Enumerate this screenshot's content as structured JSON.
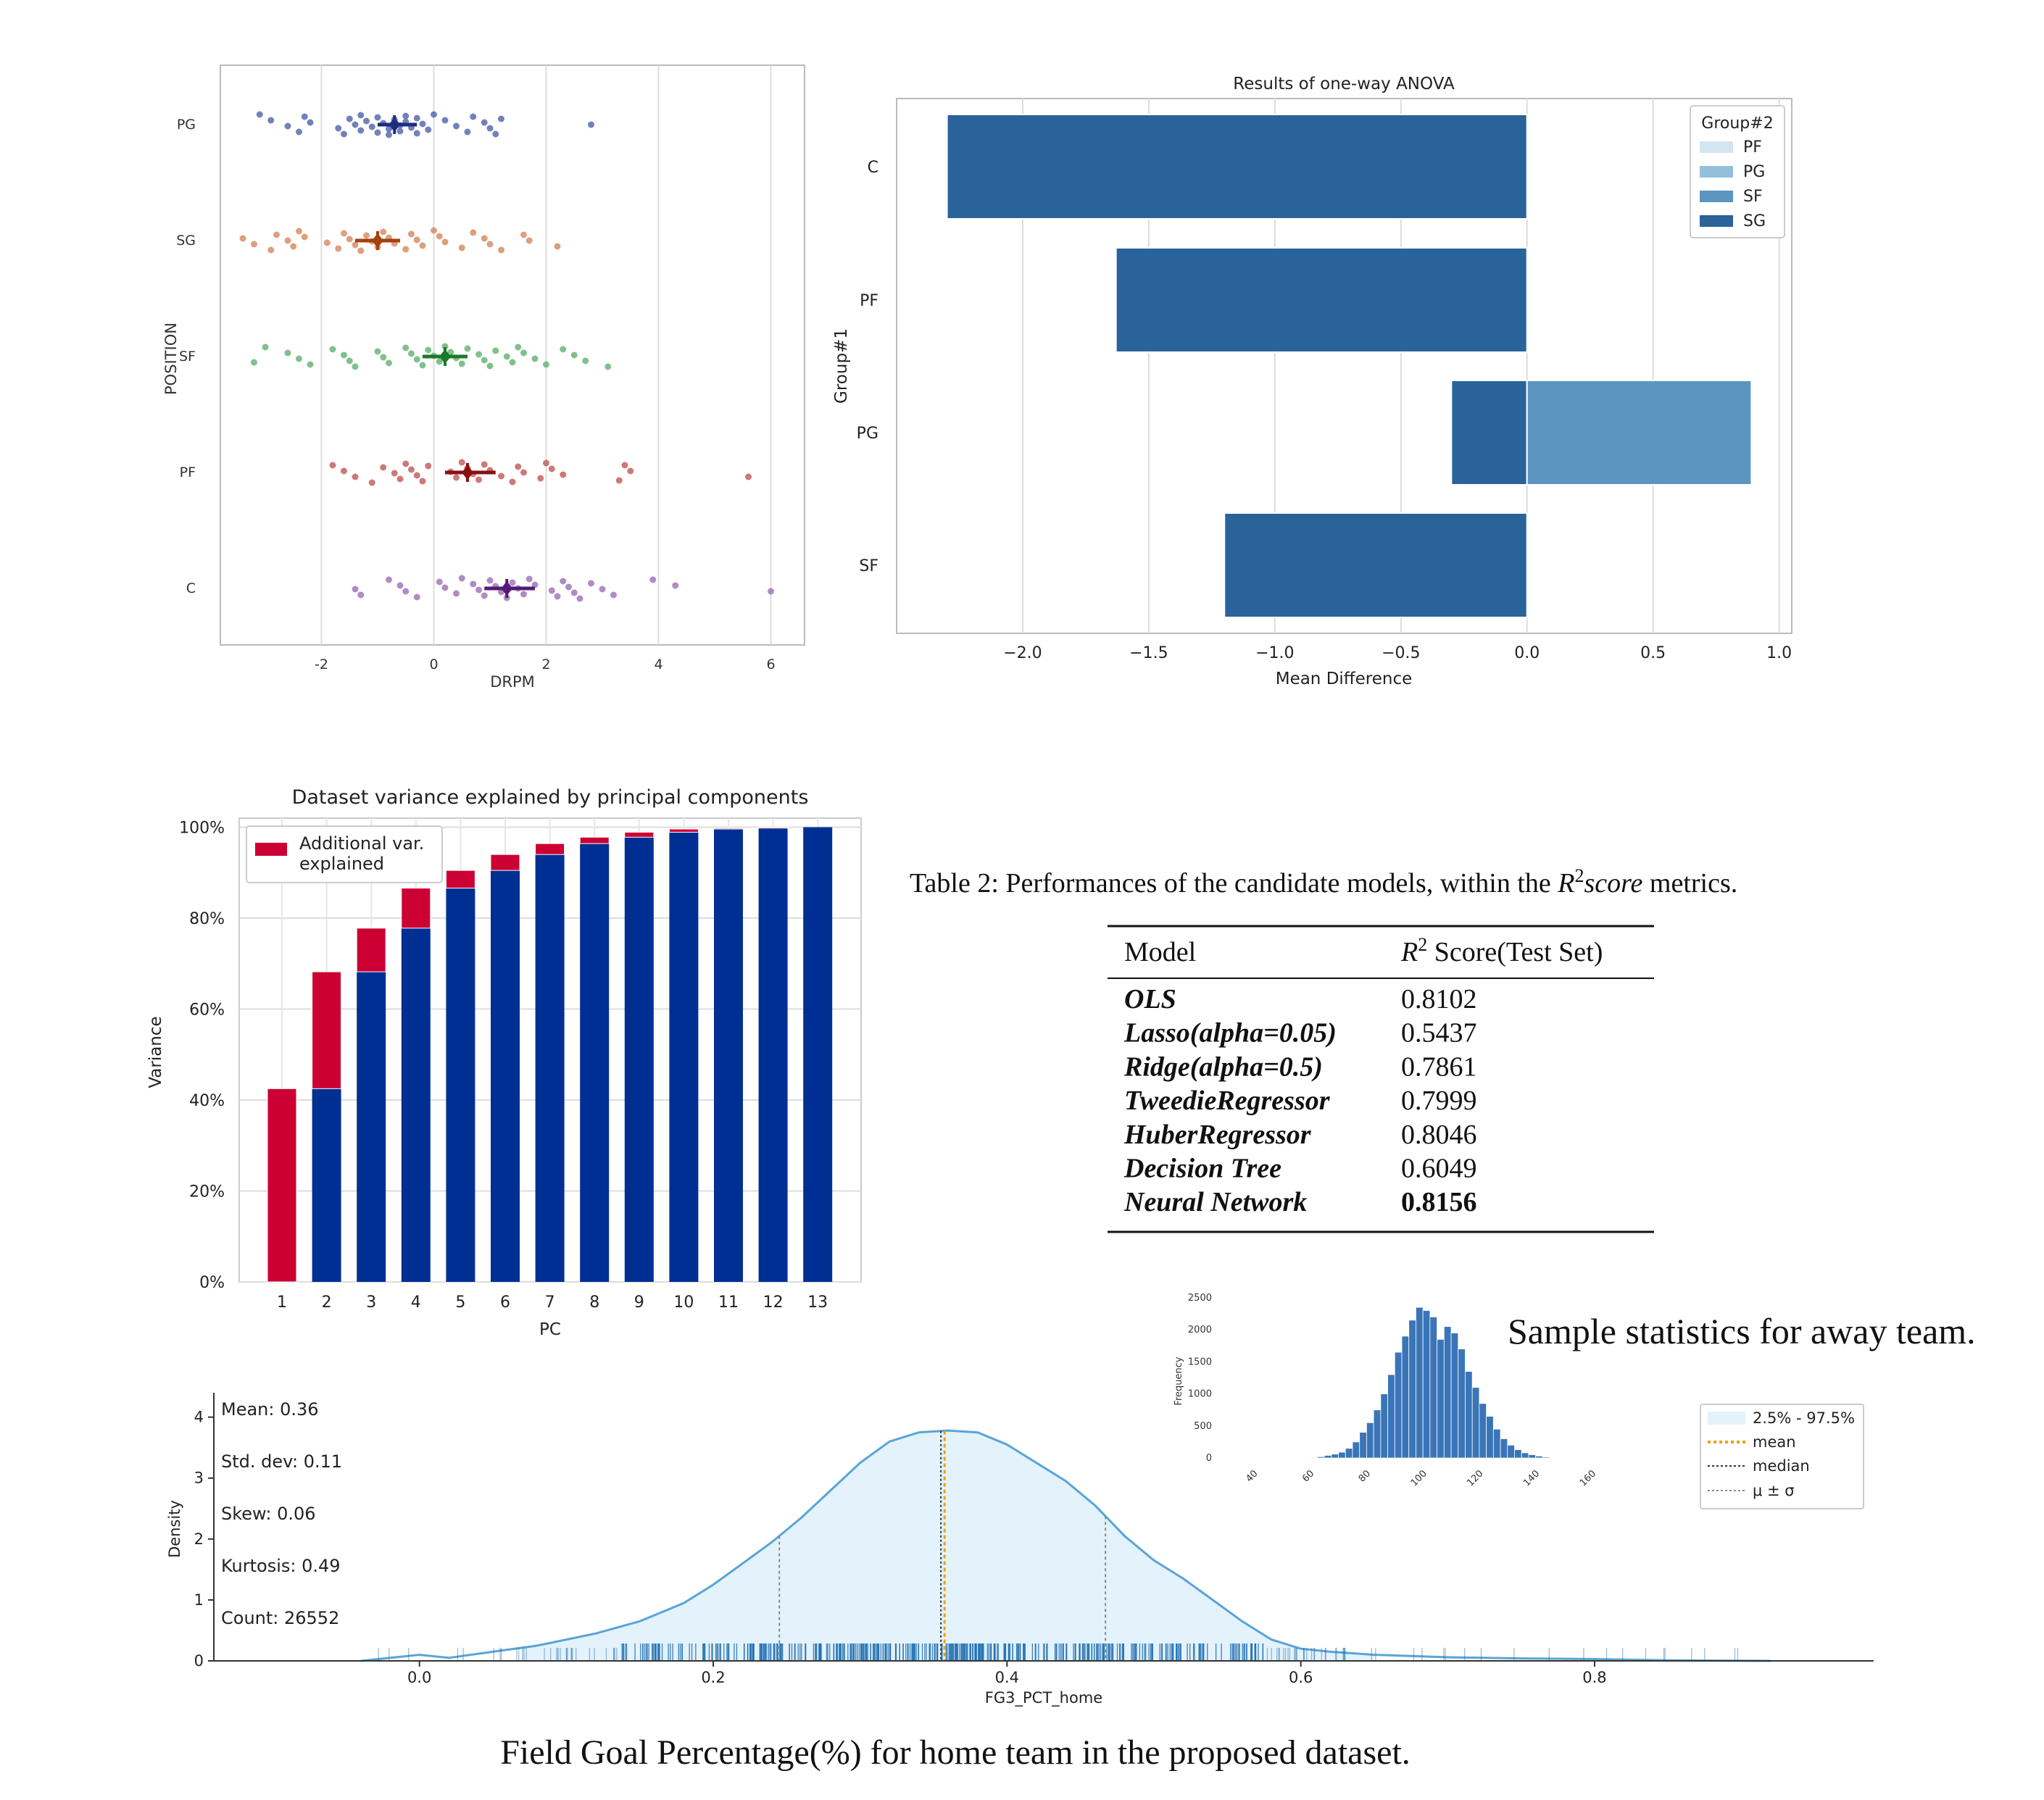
{
  "colors": {
    "pg": "#4c5ea8",
    "pg_dark": "#1c2d80",
    "sg": "#d4845a",
    "sg_dark": "#a6400c",
    "sf": "#5fae6a",
    "sf_dark": "#1b7a2a",
    "pf": "#c05252",
    "pf_dark": "#8a1010",
    "c": "#9a6bb5",
    "c_dark": "#541a78",
    "anova_sg": "#2a6399",
    "anova_sf": "#5b95c0",
    "anova_pg": "#93bfdb",
    "anova_pf": "#d4e5f2",
    "pca_cum": "#002f93",
    "pca_add": "#cc0033",
    "kde_line": "#5aa4d6",
    "kde_fill": "#e3f2fb",
    "rug": "#1f6eb0",
    "mean": "#f0a000",
    "median": "#333333",
    "hist": "#3a75b8"
  },
  "chart_data": [
    {
      "id": "strip",
      "type": "scatter",
      "title": "",
      "xlabel": "DRPM",
      "ylabel": "POSITION",
      "xlim": [
        -3.8,
        6.6
      ],
      "xticks": [
        -2,
        0,
        2,
        4,
        6
      ],
      "xtick_labels": [
        "-2",
        "0",
        "2",
        "4",
        "6"
      ],
      "grid": "x",
      "categories": [
        "PG",
        "SG",
        "SF",
        "PF",
        "C"
      ],
      "series": [
        {
          "category": "PG",
          "color_key": "pg",
          "mean": -0.7,
          "ci": [
            -1.0,
            -0.3
          ],
          "values": [
            -3.1,
            -2.9,
            -2.6,
            -2.4,
            -2.3,
            -2.2,
            -1.7,
            -1.6,
            -1.5,
            -1.4,
            -1.3,
            -1.3,
            -1.2,
            -1.1,
            -1.0,
            -1.0,
            -0.9,
            -0.8,
            -0.8,
            -0.7,
            -0.6,
            -0.6,
            -0.5,
            -0.5,
            -0.4,
            -0.3,
            -0.3,
            -0.2,
            -0.1,
            0.0,
            0.2,
            0.4,
            0.6,
            0.7,
            0.9,
            1.0,
            1.1,
            1.2,
            2.8
          ]
        },
        {
          "category": "SG",
          "color_key": "sg",
          "mean": -1.0,
          "ci": [
            -1.4,
            -0.6
          ],
          "values": [
            -3.4,
            -3.2,
            -2.9,
            -2.8,
            -2.6,
            -2.5,
            -2.4,
            -2.3,
            -1.9,
            -1.7,
            -1.6,
            -1.5,
            -1.4,
            -1.3,
            -1.2,
            -1.1,
            -1.0,
            -0.9,
            -0.8,
            -0.7,
            -0.5,
            -0.4,
            -0.3,
            -0.2,
            0.0,
            0.1,
            0.2,
            0.5,
            0.7,
            0.9,
            1.0,
            1.2,
            1.6,
            1.7,
            2.2
          ]
        },
        {
          "category": "SF",
          "color_key": "sf",
          "mean": 0.2,
          "ci": [
            -0.2,
            0.6
          ],
          "values": [
            -3.2,
            -3.0,
            -2.6,
            -2.4,
            -2.2,
            -1.8,
            -1.6,
            -1.5,
            -1.4,
            -1.0,
            -0.9,
            -0.8,
            -0.5,
            -0.4,
            -0.3,
            -0.2,
            -0.1,
            0.0,
            0.1,
            0.2,
            0.3,
            0.4,
            0.5,
            0.6,
            0.8,
            0.9,
            1.0,
            1.1,
            1.3,
            1.4,
            1.5,
            1.6,
            1.8,
            2.0,
            2.3,
            2.5,
            2.7,
            3.1
          ]
        },
        {
          "category": "PF",
          "color_key": "pf",
          "mean": 0.6,
          "ci": [
            0.2,
            1.1
          ],
          "values": [
            -1.8,
            -1.6,
            -1.4,
            -1.1,
            -0.9,
            -0.7,
            -0.6,
            -0.5,
            -0.4,
            -0.3,
            -0.2,
            -0.1,
            0.3,
            0.4,
            0.5,
            0.6,
            0.7,
            0.8,
            0.9,
            1.0,
            1.2,
            1.4,
            1.5,
            1.6,
            1.9,
            2.0,
            2.1,
            2.3,
            3.3,
            3.4,
            3.5,
            5.6
          ]
        },
        {
          "category": "C",
          "color_key": "c",
          "mean": 1.3,
          "ci": [
            0.9,
            1.8
          ],
          "values": [
            -1.4,
            -1.3,
            -0.8,
            -0.6,
            -0.5,
            -0.3,
            0.1,
            0.2,
            0.4,
            0.5,
            0.7,
            0.8,
            0.9,
            1.0,
            1.1,
            1.2,
            1.3,
            1.4,
            1.5,
            1.6,
            1.7,
            1.8,
            2.1,
            2.2,
            2.3,
            2.4,
            2.5,
            2.6,
            2.8,
            3.0,
            3.2,
            3.9,
            4.3,
            6.0
          ]
        }
      ]
    },
    {
      "id": "anova",
      "type": "bar",
      "orientation": "horizontal",
      "title": "Results of one-way ANOVA",
      "xlabel": "Mean Difference",
      "ylabel": "Group#1",
      "xlim": [
        -2.5,
        1.05
      ],
      "xticks": [
        -2.0,
        -1.5,
        -1.0,
        -0.5,
        0.0,
        0.5,
        1.0
      ],
      "xtick_labels": [
        "−2.0",
        "−1.5",
        "−1.0",
        "−0.5",
        "0.0",
        "0.5",
        "1.0"
      ],
      "grid": "x",
      "categories": [
        "C",
        "PF",
        "PG",
        "SF"
      ],
      "legend_title": "Group#2",
      "legend_position": "top-right",
      "legend": [
        {
          "label": "PF",
          "color_key": "anova_pf"
        },
        {
          "label": "PG",
          "color_key": "anova_pg"
        },
        {
          "label": "SF",
          "color_key": "anova_sf"
        },
        {
          "label": "SG",
          "color_key": "anova_sg"
        }
      ],
      "bars": [
        {
          "category": "C",
          "group2": "SG",
          "value": -2.3,
          "color_key": "anova_sg"
        },
        {
          "category": "PF",
          "group2": "SG",
          "value": -1.63,
          "color_key": "anova_sg"
        },
        {
          "category": "PG",
          "group2": "SG",
          "value": -0.3,
          "color_key": "anova_sg"
        },
        {
          "category": "PG",
          "group2": "SF",
          "value": 0.89,
          "color_key": "anova_sf"
        },
        {
          "category": "SF",
          "group2": "SG",
          "value": -1.2,
          "color_key": "anova_sg"
        }
      ]
    },
    {
      "id": "pca",
      "type": "bar",
      "stacked": true,
      "title": "Dataset variance explained by principal components",
      "xlabel": "PC",
      "ylabel": "Variance",
      "ylim": [
        0,
        102
      ],
      "yticks": [
        0,
        20,
        40,
        60,
        80,
        100
      ],
      "ytick_labels": [
        "0%",
        "20%",
        "40%",
        "60%",
        "80%",
        "100%"
      ],
      "categories": [
        "1",
        "2",
        "3",
        "4",
        "5",
        "6",
        "7",
        "8",
        "9",
        "10",
        "11",
        "12",
        "13"
      ],
      "legend_position": "top-left",
      "legend": [
        {
          "label_lines": [
            "Additional var.",
            "explained"
          ],
          "color_key": "pca_add"
        }
      ],
      "series": [
        {
          "name": "",
          "color_key": "pca_cum",
          "values": [
            0,
            42.5,
            68.2,
            77.8,
            86.6,
            90.5,
            94.0,
            96.4,
            97.8,
            98.9,
            99.6,
            99.8,
            100.0
          ]
        },
        {
          "name": "Additional var. explained",
          "color_key": "pca_add",
          "values": [
            42.5,
            25.7,
            9.6,
            8.8,
            3.9,
            3.5,
            2.4,
            1.4,
            1.1,
            0.7,
            0.2,
            0.2,
            0.0
          ]
        }
      ]
    },
    {
      "id": "density",
      "type": "area",
      "title": "",
      "xlabel": "FG3_PCT_home",
      "ylabel": "Density",
      "xlim": [
        -0.14,
        0.99
      ],
      "ylim": [
        0,
        4.4
      ],
      "xticks": [
        0.0,
        0.2,
        0.4,
        0.6,
        0.8
      ],
      "xtick_labels": [
        "0.0",
        "0.2",
        "0.4",
        "0.6",
        "0.8"
      ],
      "yticks": [
        0,
        1,
        2,
        3,
        4
      ],
      "ytick_labels": [
        "0",
        "1",
        "2",
        "3",
        "4"
      ],
      "mean": 0.356,
      "median": 0.355,
      "sigma_lines": [
        0.245,
        0.467
      ],
      "interval": [
        0.07,
        0.65
      ],
      "x": [
        -0.04,
        0.0,
        0.02,
        0.05,
        0.08,
        0.1,
        0.12,
        0.15,
        0.18,
        0.2,
        0.22,
        0.24,
        0.26,
        0.28,
        0.3,
        0.32,
        0.34,
        0.36,
        0.38,
        0.4,
        0.42,
        0.44,
        0.46,
        0.48,
        0.5,
        0.52,
        0.54,
        0.56,
        0.58,
        0.6,
        0.62,
        0.65,
        0.7,
        0.75,
        0.8,
        0.85,
        0.92
      ],
      "y": [
        0.0,
        0.1,
        0.05,
        0.15,
        0.25,
        0.35,
        0.45,
        0.65,
        0.95,
        1.25,
        1.6,
        1.95,
        2.35,
        2.8,
        3.25,
        3.6,
        3.75,
        3.78,
        3.75,
        3.55,
        3.25,
        2.95,
        2.55,
        2.05,
        1.65,
        1.35,
        1.0,
        0.65,
        0.35,
        0.2,
        0.15,
        0.1,
        0.06,
        0.04,
        0.03,
        0.01,
        0.0
      ],
      "stats": [
        "Mean: 0.36",
        "Std. dev: 0.11",
        "Skew: 0.06",
        "Kurtosis: 0.49",
        "Count: 26552"
      ],
      "legend_position": "right",
      "legend": [
        "2.5% - 97.5%",
        "mean",
        "median",
        "μ ± σ"
      ]
    },
    {
      "id": "hist",
      "type": "bar",
      "title": "",
      "xlabel": "",
      "ylabel": "Frequency",
      "xlim": [
        38,
        162
      ],
      "ylim": [
        0,
        2600
      ],
      "xticks": [
        40,
        60,
        80,
        100,
        120,
        140,
        160
      ],
      "xtick_labels": [
        "40",
        "60",
        "80",
        "100",
        "120",
        "140",
        "160"
      ],
      "yticks": [
        0,
        500,
        1000,
        1500,
        2000,
        2500
      ],
      "ytick_labels": [
        "0",
        "500",
        "1000",
        "1500",
        "2000",
        "2500"
      ],
      "bin_start": 56,
      "bin_width": 2.5,
      "values": [
        5,
        10,
        20,
        40,
        60,
        90,
        150,
        250,
        400,
        550,
        750,
        1000,
        1300,
        1650,
        1900,
        2150,
        2350,
        2300,
        2200,
        1850,
        2050,
        1950,
        1700,
        1350,
        1100,
        850,
        650,
        450,
        300,
        200,
        130,
        80,
        50,
        30,
        15,
        8
      ]
    }
  ],
  "table": {
    "caption_prefix": "Table 2: Performances of the candidate models, within the ",
    "caption_math_base": "R",
    "caption_math_sup": "2",
    "caption_math_word": "score",
    "caption_suffix": " metrics.",
    "header_model": "Model",
    "header_score_base": "R",
    "header_score_sup": "2",
    "header_score_rest": " Score(Test Set)",
    "rows": [
      {
        "model": "OLS",
        "score": "0.8102"
      },
      {
        "model": "Lasso(alpha=0.05)",
        "score": "0.5437"
      },
      {
        "model": "Ridge(alpha=0.5)",
        "score": "0.7861"
      },
      {
        "model": "TweedieRegressor",
        "score": "0.7999"
      },
      {
        "model": "HuberRegressor",
        "score": "0.8046"
      },
      {
        "model": "Decision Tree",
        "score": "0.6049"
      },
      {
        "model": "Neural Network",
        "score": "0.8156"
      }
    ]
  },
  "captions": {
    "away": "Sample statistics for away team.",
    "home": "Field Goal Percentage(%) for home team in the proposed dataset."
  }
}
